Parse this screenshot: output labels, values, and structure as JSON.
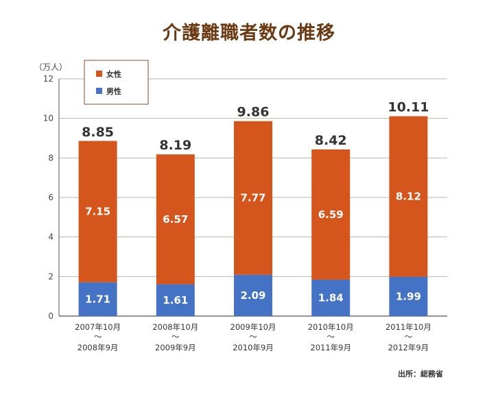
{
  "chart_data": {
    "type": "bar",
    "stacked": true,
    "title": "介護離職者数の推移",
    "ylabel": "（万人）",
    "ylim": [
      0,
      12
    ],
    "yticks": [
      0,
      2,
      4,
      6,
      8,
      10,
      12
    ],
    "grid": true,
    "legend_position": "top-left",
    "categories": [
      {
        "top": "2007年10月",
        "mid": "〜",
        "bottom": "2008年9月"
      },
      {
        "top": "2008年10月",
        "mid": "〜",
        "bottom": "2009年9月"
      },
      {
        "top": "2009年10月",
        "mid": "〜",
        "bottom": "2010年9月"
      },
      {
        "top": "2010年10月",
        "mid": "〜",
        "bottom": "2011年9月"
      },
      {
        "top": "2011年10月",
        "mid": "〜",
        "bottom": "2012年9月"
      }
    ],
    "series": [
      {
        "name": "男性",
        "color": "#4472c4",
        "values": [
          1.71,
          1.61,
          2.09,
          1.84,
          1.99
        ],
        "labels": [
          "1.71",
          "1.61",
          "2.09",
          "1.84",
          "1.99"
        ]
      },
      {
        "name": "女性",
        "color": "#d4561c",
        "values": [
          7.15,
          6.57,
          7.77,
          6.59,
          8.12
        ],
        "labels": [
          "7.15",
          "6.57",
          "7.77",
          "6.59",
          "8.12"
        ]
      }
    ],
    "totals": [
      8.85,
      8.19,
      9.86,
      8.42,
      10.11
    ],
    "total_labels": [
      "8.85",
      "8.19",
      "9.86",
      "8.42",
      "10.11"
    ],
    "legend": [
      {
        "name": "女性",
        "color": "#d4561c"
      },
      {
        "name": "男性",
        "color": "#4472c4"
      }
    ],
    "source": "出所：総務省"
  }
}
